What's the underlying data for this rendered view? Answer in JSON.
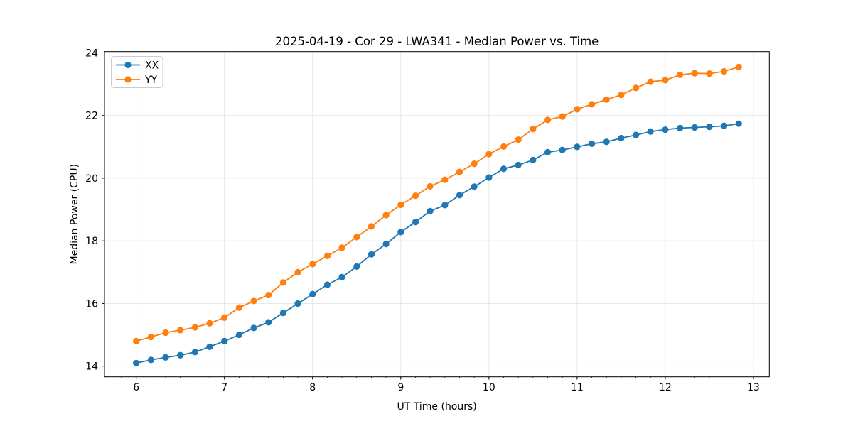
{
  "figure": {
    "title": "2025-04-19 - Cor 29 - LWA341 - Median Power vs. Time"
  },
  "chart_data": {
    "type": "line",
    "title": "2025-04-19 - Cor 29 - LWA341 - Median Power vs. Time",
    "xlabel": "UT Time (hours)",
    "ylabel": "Median Power (CPU)",
    "xlim": [
      5.64,
      13.18
    ],
    "ylim": [
      13.66,
      24.04
    ],
    "x_major_ticks": [
      6,
      7,
      8,
      9,
      10,
      11,
      12,
      13
    ],
    "x_minor_interval": 0.1666667,
    "y_major_ticks": [
      14,
      16,
      18,
      20,
      22,
      24
    ],
    "grid": true,
    "grid_color": "#e4e4e4",
    "legend_position": "upper left",
    "legend_border_color": "#cccccc",
    "marker": "circle",
    "x": [
      6.0,
      6.167,
      6.333,
      6.5,
      6.667,
      6.833,
      7.0,
      7.167,
      7.333,
      7.5,
      7.667,
      7.833,
      8.0,
      8.167,
      8.333,
      8.5,
      8.667,
      8.833,
      9.0,
      9.167,
      9.333,
      9.5,
      9.667,
      9.833,
      10.0,
      10.167,
      10.333,
      10.5,
      10.667,
      10.833,
      11.0,
      11.167,
      11.333,
      11.5,
      11.667,
      11.833,
      12.0,
      12.167,
      12.333,
      12.5,
      12.667,
      12.833
    ],
    "series": [
      {
        "name": "XX",
        "color": "#1f77b4",
        "values": [
          14.1,
          14.2,
          14.28,
          14.35,
          14.45,
          14.62,
          14.8,
          15.0,
          15.22,
          15.4,
          15.7,
          16.0,
          16.3,
          16.6,
          16.84,
          17.18,
          17.57,
          17.9,
          18.28,
          18.6,
          18.95,
          19.14,
          19.46,
          19.73,
          20.02,
          20.3,
          20.42,
          20.58,
          20.83,
          20.9,
          21.0,
          21.1,
          21.16,
          21.28,
          21.38,
          21.49,
          21.55,
          21.6,
          21.62,
          21.64,
          21.67,
          21.74
        ]
      },
      {
        "name": "YY",
        "color": "#ff7f0e",
        "values": [
          14.8,
          14.93,
          15.07,
          15.15,
          15.24,
          15.37,
          15.55,
          15.87,
          16.08,
          16.27,
          16.67,
          17.0,
          17.26,
          17.52,
          17.78,
          18.12,
          18.46,
          18.82,
          19.15,
          19.44,
          19.74,
          19.95,
          20.2,
          20.46,
          20.77,
          21.01,
          21.23,
          21.57,
          21.86,
          21.97,
          22.2,
          22.36,
          22.51,
          22.66,
          22.88,
          23.08,
          23.13,
          23.3,
          23.35,
          23.34,
          23.41,
          23.55
        ]
      }
    ]
  }
}
